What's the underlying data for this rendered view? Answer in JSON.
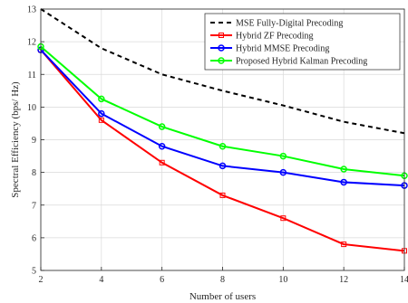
{
  "chart_data": {
    "type": "line",
    "title": "",
    "xlabel": "Number of users",
    "ylabel": "Spectral Efficiency (bps/ Hz)",
    "x": [
      2,
      4,
      6,
      8,
      10,
      12,
      14
    ],
    "xlim": [
      2,
      14
    ],
    "ylim": [
      5,
      13
    ],
    "xticks": [
      "2",
      "4",
      "6",
      "8",
      "10",
      "12",
      "14"
    ],
    "yticks": [
      "5",
      "6",
      "7",
      "8",
      "9",
      "10",
      "11",
      "12",
      "13"
    ],
    "grid": true,
    "legend_position": "top-right",
    "series": [
      {
        "name": "MSE Fully-Digital Precoding",
        "values": [
          13.0,
          11.8,
          11.0,
          10.5,
          10.05,
          9.55,
          9.2
        ],
        "color": "#000000",
        "style": "dashed",
        "marker": "none"
      },
      {
        "name": "Hybrid ZF Precoding",
        "values": [
          11.75,
          9.6,
          8.3,
          7.3,
          6.6,
          5.8,
          5.6
        ],
        "color": "#ff0000",
        "style": "solid",
        "marker": "square"
      },
      {
        "name": "Hybrid MMSE Precoding",
        "values": [
          11.75,
          9.8,
          8.8,
          8.2,
          8.0,
          7.7,
          7.6
        ],
        "color": "#0000ff",
        "style": "solid",
        "marker": "circle"
      },
      {
        "name": "Proposed Hybrid Kalman Precoding",
        "values": [
          11.85,
          10.25,
          9.4,
          8.8,
          8.5,
          8.1,
          7.9
        ],
        "color": "#00ff00",
        "style": "solid",
        "marker": "circle"
      }
    ]
  }
}
